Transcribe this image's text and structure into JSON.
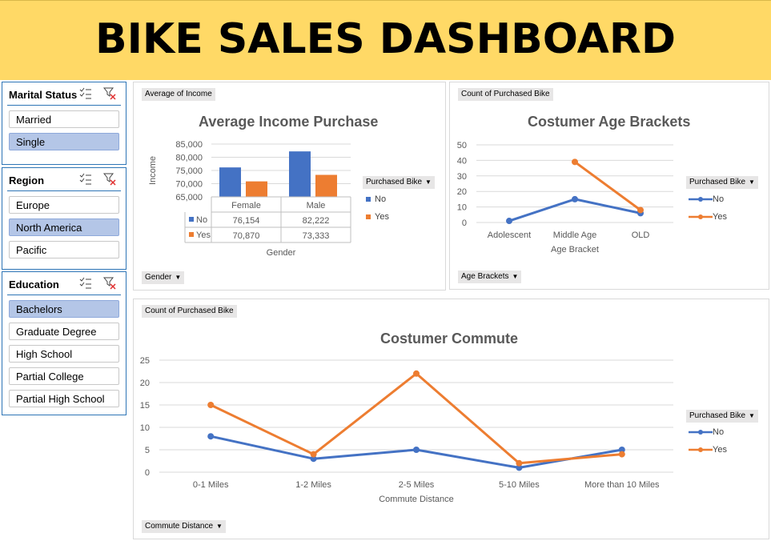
{
  "title": "BIKE SALES DASHBOARD",
  "colors": {
    "no": "#4472c4",
    "yes": "#ed7d31",
    "banner": "#ffd966",
    "selected": "#b4c6e7"
  },
  "slicers": {
    "marital": {
      "title": "Marital Status",
      "items": [
        {
          "label": "Married",
          "selected": false
        },
        {
          "label": "Single",
          "selected": true
        }
      ]
    },
    "region": {
      "title": "Region",
      "items": [
        {
          "label": "Europe",
          "selected": false
        },
        {
          "label": "North America",
          "selected": true
        },
        {
          "label": "Pacific",
          "selected": false
        }
      ]
    },
    "education": {
      "title": "Education",
      "items": [
        {
          "label": "Bachelors",
          "selected": true
        },
        {
          "label": "Graduate Degree",
          "selected": false
        },
        {
          "label": "High School",
          "selected": false
        },
        {
          "label": "Partial College",
          "selected": false
        },
        {
          "label": "Partial High School",
          "selected": false
        }
      ]
    },
    "icons": [
      "multi-select-icon",
      "clear-filter-icon"
    ]
  },
  "income_panel": {
    "value_button": "Average of Income",
    "axis_button": "Gender",
    "legend_title": "Purchased Bike"
  },
  "age_panel": {
    "value_button": "Count of Purchased Bike",
    "axis_button": "Age Brackets",
    "legend_title": "Purchased Bike"
  },
  "commute_panel": {
    "value_button": "Count of Purchased Bike",
    "axis_button": "Commute Distance",
    "legend_title": "Purchased Bike"
  },
  "chart_data": [
    {
      "type": "bar",
      "title": "Average Income Purchase",
      "xlabel": "Gender",
      "ylabel": "Income",
      "categories": [
        "Female",
        "Male"
      ],
      "series": [
        {
          "name": "No",
          "values": [
            76154,
            82222
          ],
          "labels": [
            "76,154",
            "82,222"
          ]
        },
        {
          "name": "Yes",
          "values": [
            70870,
            73333
          ],
          "labels": [
            "70,870",
            "73,333"
          ]
        }
      ],
      "ylim": [
        65000,
        85000
      ],
      "yticks": [
        "65,000",
        "70,000",
        "75,000",
        "80,000",
        "85,000"
      ],
      "ytick_values": [
        65000,
        70000,
        75000,
        80000,
        85000
      ],
      "data_table": true,
      "legend": "right",
      "grid": true
    },
    {
      "type": "line",
      "title": "Costumer Age Brackets",
      "xlabel": "Age Bracket",
      "ylabel": "",
      "categories": [
        "Adolescent",
        "Middle Age",
        "OLD"
      ],
      "series": [
        {
          "name": "No",
          "values": [
            1,
            15,
            6
          ]
        },
        {
          "name": "Yes",
          "values": [
            null,
            39,
            8
          ]
        }
      ],
      "ylim": [
        0,
        50
      ],
      "yticks": [
        "0",
        "10",
        "20",
        "30",
        "40",
        "50"
      ],
      "ytick_values": [
        0,
        10,
        20,
        30,
        40,
        50
      ],
      "legend": "right",
      "grid": true
    },
    {
      "type": "line",
      "title": "Costumer Commute",
      "xlabel": "Commute Distance",
      "ylabel": "",
      "categories": [
        "0-1 Miles",
        "1-2 Miles",
        "2-5 Miles",
        "5-10 Miles",
        "More than 10 Miles"
      ],
      "series": [
        {
          "name": "No",
          "values": [
            8,
            3,
            5,
            1,
            5
          ]
        },
        {
          "name": "Yes",
          "values": [
            15,
            4,
            22,
            2,
            4
          ]
        }
      ],
      "ylim": [
        0,
        25
      ],
      "yticks": [
        "0",
        "5",
        "10",
        "15",
        "20",
        "25"
      ],
      "ytick_values": [
        0,
        5,
        10,
        15,
        20,
        25
      ],
      "legend": "right",
      "grid": true
    }
  ]
}
